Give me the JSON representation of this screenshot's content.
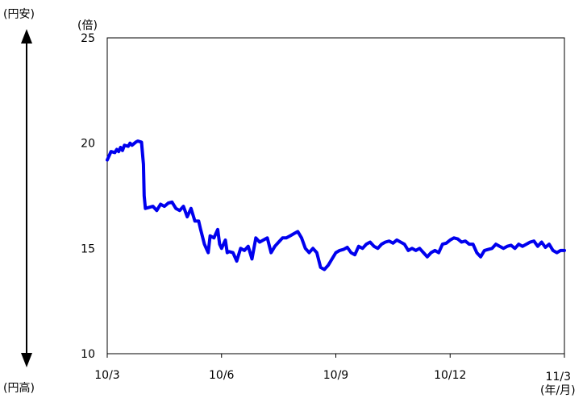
{
  "chart_data": {
    "type": "line",
    "title": "",
    "xlabel": "",
    "ylabel": "(倍)",
    "x_unit_label": "(年/月)",
    "arrow_top_label": "(円安)",
    "arrow_bottom_label": "(円高)",
    "ylim": [
      10,
      25
    ],
    "yticks": [
      "10",
      "15",
      "20",
      "25"
    ],
    "xticks": [
      "10/3",
      "10/6",
      "10/9",
      "10/12",
      "11/3"
    ],
    "line_color": "#0000ee",
    "grid": false,
    "series": [
      {
        "name": "",
        "x": [
          0.0,
          0.1,
          0.2,
          0.25,
          0.3,
          0.35,
          0.4,
          0.45,
          0.55,
          0.6,
          0.65,
          0.75,
          0.8,
          0.9,
          0.95,
          0.97,
          1.0,
          1.2,
          1.3,
          1.4,
          1.5,
          1.6,
          1.7,
          1.8,
          1.9,
          2.0,
          2.1,
          2.2,
          2.3,
          2.4,
          2.45,
          2.55,
          2.65,
          2.7,
          2.8,
          2.9,
          2.95,
          3.0,
          3.1,
          3.15,
          3.2,
          3.3,
          3.4,
          3.5,
          3.6,
          3.7,
          3.8,
          3.9,
          4.0,
          4.1,
          4.2,
          4.3,
          4.4,
          4.5,
          4.6,
          4.7,
          4.8,
          4.9,
          5.0,
          5.1,
          5.2,
          5.3,
          5.4,
          5.5,
          5.6,
          5.7,
          5.8,
          5.9,
          6.0,
          6.1,
          6.2,
          6.3,
          6.4,
          6.5,
          6.6,
          6.7,
          6.8,
          6.9,
          7.0,
          7.1,
          7.2,
          7.3,
          7.4,
          7.5,
          7.6,
          7.7,
          7.8,
          7.9,
          8.0,
          8.1,
          8.2,
          8.3,
          8.4,
          8.5,
          8.6,
          8.7,
          8.8,
          8.9,
          9.0,
          9.1,
          9.2,
          9.3,
          9.4,
          9.5,
          9.6,
          9.7,
          9.8,
          9.9,
          10.0,
          10.1,
          10.2,
          10.3,
          10.4,
          10.5,
          10.6,
          10.7,
          10.8,
          10.9,
          11.0,
          11.1,
          11.2,
          11.3,
          11.4,
          11.5,
          11.6,
          11.7,
          11.8,
          11.9,
          12.0
        ],
        "y": [
          19.2,
          19.6,
          19.55,
          19.7,
          19.6,
          19.8,
          19.65,
          19.9,
          19.85,
          20.0,
          19.9,
          20.05,
          20.1,
          20.05,
          19.0,
          17.5,
          16.9,
          17.0,
          16.8,
          17.1,
          17.0,
          17.15,
          17.2,
          16.9,
          16.8,
          17.0,
          16.5,
          16.9,
          16.3,
          16.3,
          15.9,
          15.2,
          14.8,
          15.6,
          15.5,
          15.9,
          15.2,
          15.0,
          15.4,
          14.8,
          14.85,
          14.8,
          14.4,
          15.0,
          14.9,
          15.1,
          14.5,
          15.5,
          15.3,
          15.4,
          15.5,
          14.8,
          15.1,
          15.3,
          15.5,
          15.5,
          15.6,
          15.7,
          15.8,
          15.5,
          15.0,
          14.8,
          15.0,
          14.8,
          14.1,
          14.0,
          14.2,
          14.5,
          14.8,
          14.9,
          14.95,
          15.05,
          14.8,
          14.7,
          15.1,
          15.0,
          15.2,
          15.3,
          15.1,
          15.0,
          15.2,
          15.3,
          15.35,
          15.25,
          15.4,
          15.3,
          15.2,
          14.9,
          15.0,
          14.9,
          15.0,
          14.8,
          14.6,
          14.8,
          14.9,
          14.8,
          15.2,
          15.25,
          15.4,
          15.5,
          15.45,
          15.3,
          15.35,
          15.2,
          15.2,
          14.8,
          14.6,
          14.9,
          14.95,
          15.0,
          15.2,
          15.1,
          15.0,
          15.1,
          15.15,
          15.0,
          15.2,
          15.1,
          15.2,
          15.3,
          15.35,
          15.1,
          15.3,
          15.05,
          15.2,
          14.9,
          14.8,
          14.9,
          14.9
        ]
      }
    ]
  }
}
